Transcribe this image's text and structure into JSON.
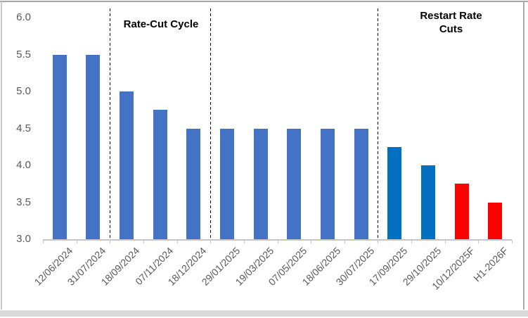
{
  "chart_data": {
    "type": "bar",
    "title": "",
    "xlabel": "",
    "ylabel": "",
    "categories": [
      "12/06/2024",
      "31/07/2024",
      "18/09/2024",
      "07/11/2024",
      "18/12/2024",
      "29/01/2025",
      "19/03/2025",
      "07/05/2025",
      "18/06/2025",
      "30/07/2025",
      "17/09/2025",
      "29/10/2025",
      "10/12/2025F",
      "H1-2026F"
    ],
    "values": [
      5.5,
      5.5,
      5.0,
      4.75,
      4.5,
      4.5,
      4.5,
      4.5,
      4.5,
      4.5,
      4.25,
      4.0,
      3.75,
      3.5
    ],
    "bar_colors": [
      "#4472C4",
      "#4472C4",
      "#4472C4",
      "#4472C4",
      "#4472C4",
      "#4472C4",
      "#4472C4",
      "#4472C4",
      "#4472C4",
      "#4472C4",
      "#0070C0",
      "#0070C0",
      "#FF0000",
      "#FF0000"
    ],
    "ylim": [
      3.0,
      6.0
    ],
    "ytick_labels": [
      "6.0",
      "5.5",
      "5.0",
      "4.5",
      "4.0",
      "3.5",
      "3.0"
    ],
    "x_tick_rotation_deg": 45,
    "grid": false,
    "legend": false,
    "annotations": [
      {
        "label": "Rate-Cut Cycle"
      },
      {
        "label": "Restart Rate\nCuts"
      }
    ],
    "divider_boundary_indices": [
      2,
      5,
      10
    ],
    "divider_lines_after_category": [
      "31/07/2024",
      "18/12/2024",
      "30/07/2025"
    ],
    "colors": {
      "bar_default": "#4472C4",
      "bar_recent": "#0070C0",
      "bar_forecast": "#FF0000",
      "axis_text": "#595959",
      "axis_line": "#C6C6C6",
      "divider": "#000000",
      "annotation_text": "#000000"
    }
  }
}
